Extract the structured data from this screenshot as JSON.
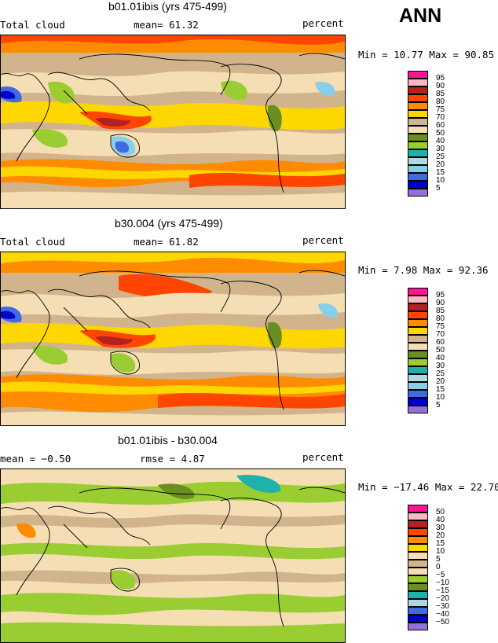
{
  "season": "ANN",
  "panels": [
    {
      "title": "b01.01ibis (yrs 475-499)",
      "left_label": "Total cloud",
      "middle_label": "mean=  61.32",
      "right_label": "percent",
      "minmax": "Min =  10.77 Max =  90.85",
      "legend": [
        "95",
        "90",
        "85",
        "80",
        "75",
        "70",
        "60",
        "50",
        "40",
        "30",
        "25",
        "20",
        "15",
        "10",
        "5"
      ],
      "colors": [
        "#ff1493",
        "#ffb6c1",
        "#b22222",
        "#ff4500",
        "#ff8c00",
        "#ffd700",
        "#d2b48c",
        "#f5deb3",
        "#6b8e23",
        "#9acd32",
        "#20b2aa",
        "#add8e6",
        "#87ceeb",
        "#4169e1",
        "#0000cd",
        "#9370db"
      ]
    },
    {
      "title": "b30.004 (yrs 475-499)",
      "left_label": "Total cloud",
      "middle_label": "mean=  61.82",
      "right_label": "percent",
      "minmax": "Min =   7.98 Max =  92.36",
      "legend": [
        "95",
        "90",
        "85",
        "80",
        "75",
        "70",
        "60",
        "50",
        "40",
        "30",
        "25",
        "20",
        "15",
        "10",
        "5"
      ],
      "colors": [
        "#ff1493",
        "#ffb6c1",
        "#b22222",
        "#ff4500",
        "#ff8c00",
        "#ffd700",
        "#d2b48c",
        "#f5deb3",
        "#6b8e23",
        "#9acd32",
        "#20b2aa",
        "#add8e6",
        "#87ceeb",
        "#4169e1",
        "#0000cd",
        "#9370db"
      ]
    },
    {
      "title": "b01.01ibis - b30.004",
      "left_label": "mean =  −0.50",
      "middle_label": "rmse =   4.87",
      "right_label": "percent",
      "minmax": "Min = −17.46 Max =  22.70",
      "legend": [
        "50",
        "40",
        "30",
        "20",
        "15",
        "10",
        "5",
        "0",
        "−5",
        "−10",
        "−15",
        "−20",
        "−30",
        "−40",
        "−50"
      ],
      "colors": [
        "#ff1493",
        "#ffb6c1",
        "#b22222",
        "#ff4500",
        "#ff8c00",
        "#ffd700",
        "#f5deb3",
        "#d2b48c",
        "#f5deb3",
        "#9acd32",
        "#6b8e23",
        "#20b2aa",
        "#add8e6",
        "#4169e1",
        "#0000cd",
        "#9370db"
      ]
    }
  ]
}
